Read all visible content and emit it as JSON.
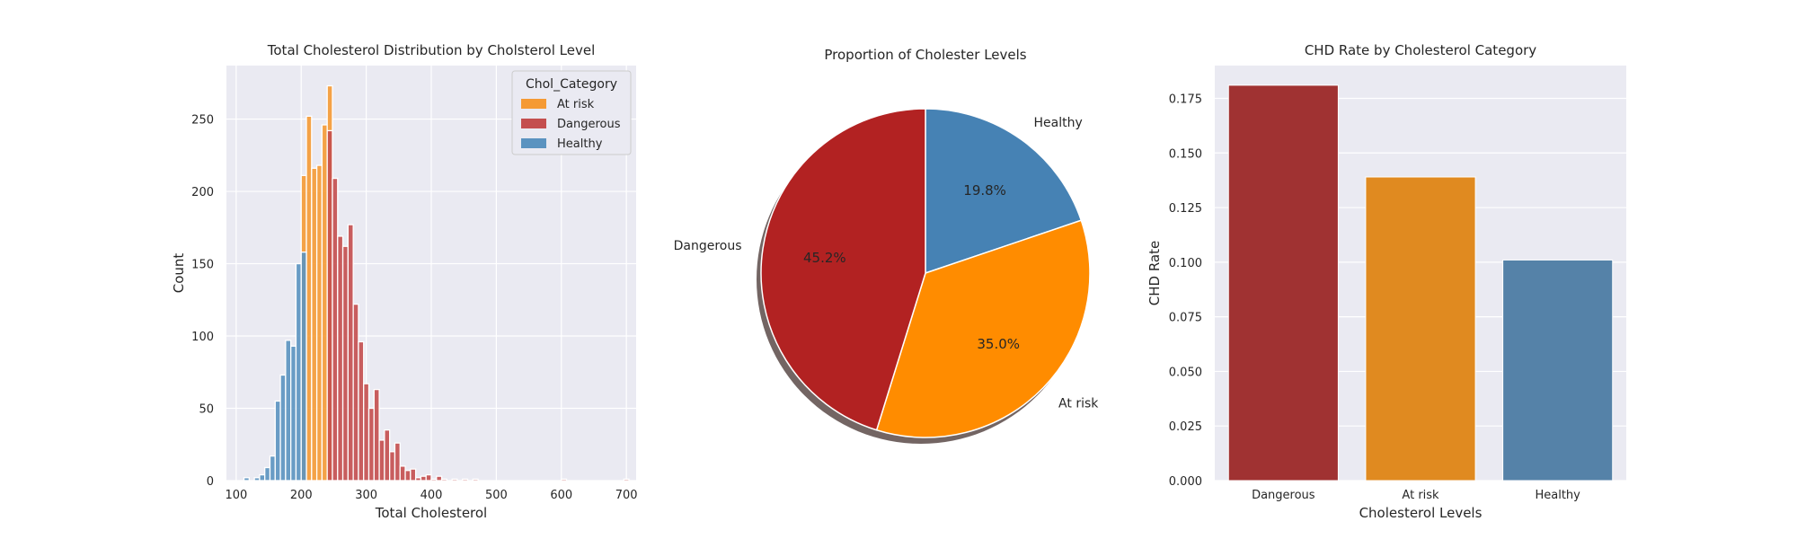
{
  "chart_data": [
    {
      "type": "bar",
      "subtype": "histogram",
      "title": "Total Cholesterol Distribution by Cholsterol Level",
      "xlabel": "Total Cholesterol",
      "ylabel": "Count",
      "xlim": [
        85,
        715
      ],
      "ylim": [
        0,
        287
      ],
      "xticks": [
        100,
        200,
        300,
        400,
        500,
        600,
        700
      ],
      "yticks": [
        0,
        50,
        100,
        150,
        200,
        250
      ],
      "grid": true,
      "legend": {
        "title": "Chol_Category",
        "position": "top-right"
      },
      "series": [
        {
          "name": "At risk",
          "color": "#f59a34",
          "bin_width": 8,
          "bins": [
            {
              "x": 200,
              "y": 211
            },
            {
              "x": 208,
              "y": 252
            },
            {
              "x": 216,
              "y": 216
            },
            {
              "x": 224,
              "y": 218
            },
            {
              "x": 232,
              "y": 246
            },
            {
              "x": 240,
              "y": 273
            }
          ]
        },
        {
          "name": "Dangerous",
          "color": "#c44e4e",
          "bin_width": 8,
          "bins": [
            {
              "x": 240,
              "y": 242
            },
            {
              "x": 248,
              "y": 209
            },
            {
              "x": 256,
              "y": 169
            },
            {
              "x": 264,
              "y": 162
            },
            {
              "x": 272,
              "y": 177
            },
            {
              "x": 280,
              "y": 122
            },
            {
              "x": 288,
              "y": 96
            },
            {
              "x": 296,
              "y": 67
            },
            {
              "x": 304,
              "y": 50
            },
            {
              "x": 312,
              "y": 63
            },
            {
              "x": 320,
              "y": 28
            },
            {
              "x": 328,
              "y": 35
            },
            {
              "x": 336,
              "y": 20
            },
            {
              "x": 344,
              "y": 26
            },
            {
              "x": 352,
              "y": 10
            },
            {
              "x": 360,
              "y": 7
            },
            {
              "x": 368,
              "y": 8
            },
            {
              "x": 376,
              "y": 2
            },
            {
              "x": 384,
              "y": 3
            },
            {
              "x": 392,
              "y": 4
            },
            {
              "x": 400,
              "y": 1
            },
            {
              "x": 408,
              "y": 3
            },
            {
              "x": 416,
              "y": 1
            },
            {
              "x": 432,
              "y": 1
            },
            {
              "x": 448,
              "y": 1
            },
            {
              "x": 464,
              "y": 1
            },
            {
              "x": 600,
              "y": 1
            },
            {
              "x": 696,
              "y": 1
            }
          ]
        },
        {
          "name": "Healthy",
          "color": "#5b93c0",
          "bin_width": 8,
          "bins": [
            {
              "x": 112,
              "y": 2
            },
            {
              "x": 128,
              "y": 2
            },
            {
              "x": 136,
              "y": 4
            },
            {
              "x": 144,
              "y": 9
            },
            {
              "x": 152,
              "y": 17
            },
            {
              "x": 160,
              "y": 55
            },
            {
              "x": 168,
              "y": 73
            },
            {
              "x": 176,
              "y": 97
            },
            {
              "x": 184,
              "y": 93
            },
            {
              "x": 192,
              "y": 150
            },
            {
              "x": 200,
              "y": 158
            }
          ]
        }
      ]
    },
    {
      "type": "pie",
      "title": "Proportion of Cholester Levels",
      "shadow": true,
      "start_angle": 90,
      "slices": [
        {
          "label": "Healthy",
          "value": 19.8,
          "pct_label": "19.8%",
          "color": "#4682b4"
        },
        {
          "label": "At risk",
          "value": 35.0,
          "pct_label": "35.0%",
          "color": "#ff8c00"
        },
        {
          "label": "Dangerous",
          "value": 45.2,
          "pct_label": "45.2%",
          "color": "#b22222"
        }
      ]
    },
    {
      "type": "bar",
      "title": "CHD Rate by Cholesterol Category",
      "xlabel": "Cholesterol Levels",
      "ylabel": "CHD Rate",
      "categories": [
        "Dangerous",
        "At risk",
        "Healthy"
      ],
      "values": [
        0.181,
        0.139,
        0.101
      ],
      "colors": [
        "#a03232",
        "#e08a20",
        "#5582a8"
      ],
      "ylim": [
        0,
        0.19
      ],
      "yticks": [
        "0.000",
        "0.025",
        "0.050",
        "0.075",
        "0.100",
        "0.125",
        "0.150",
        "0.175"
      ],
      "grid": true
    }
  ]
}
